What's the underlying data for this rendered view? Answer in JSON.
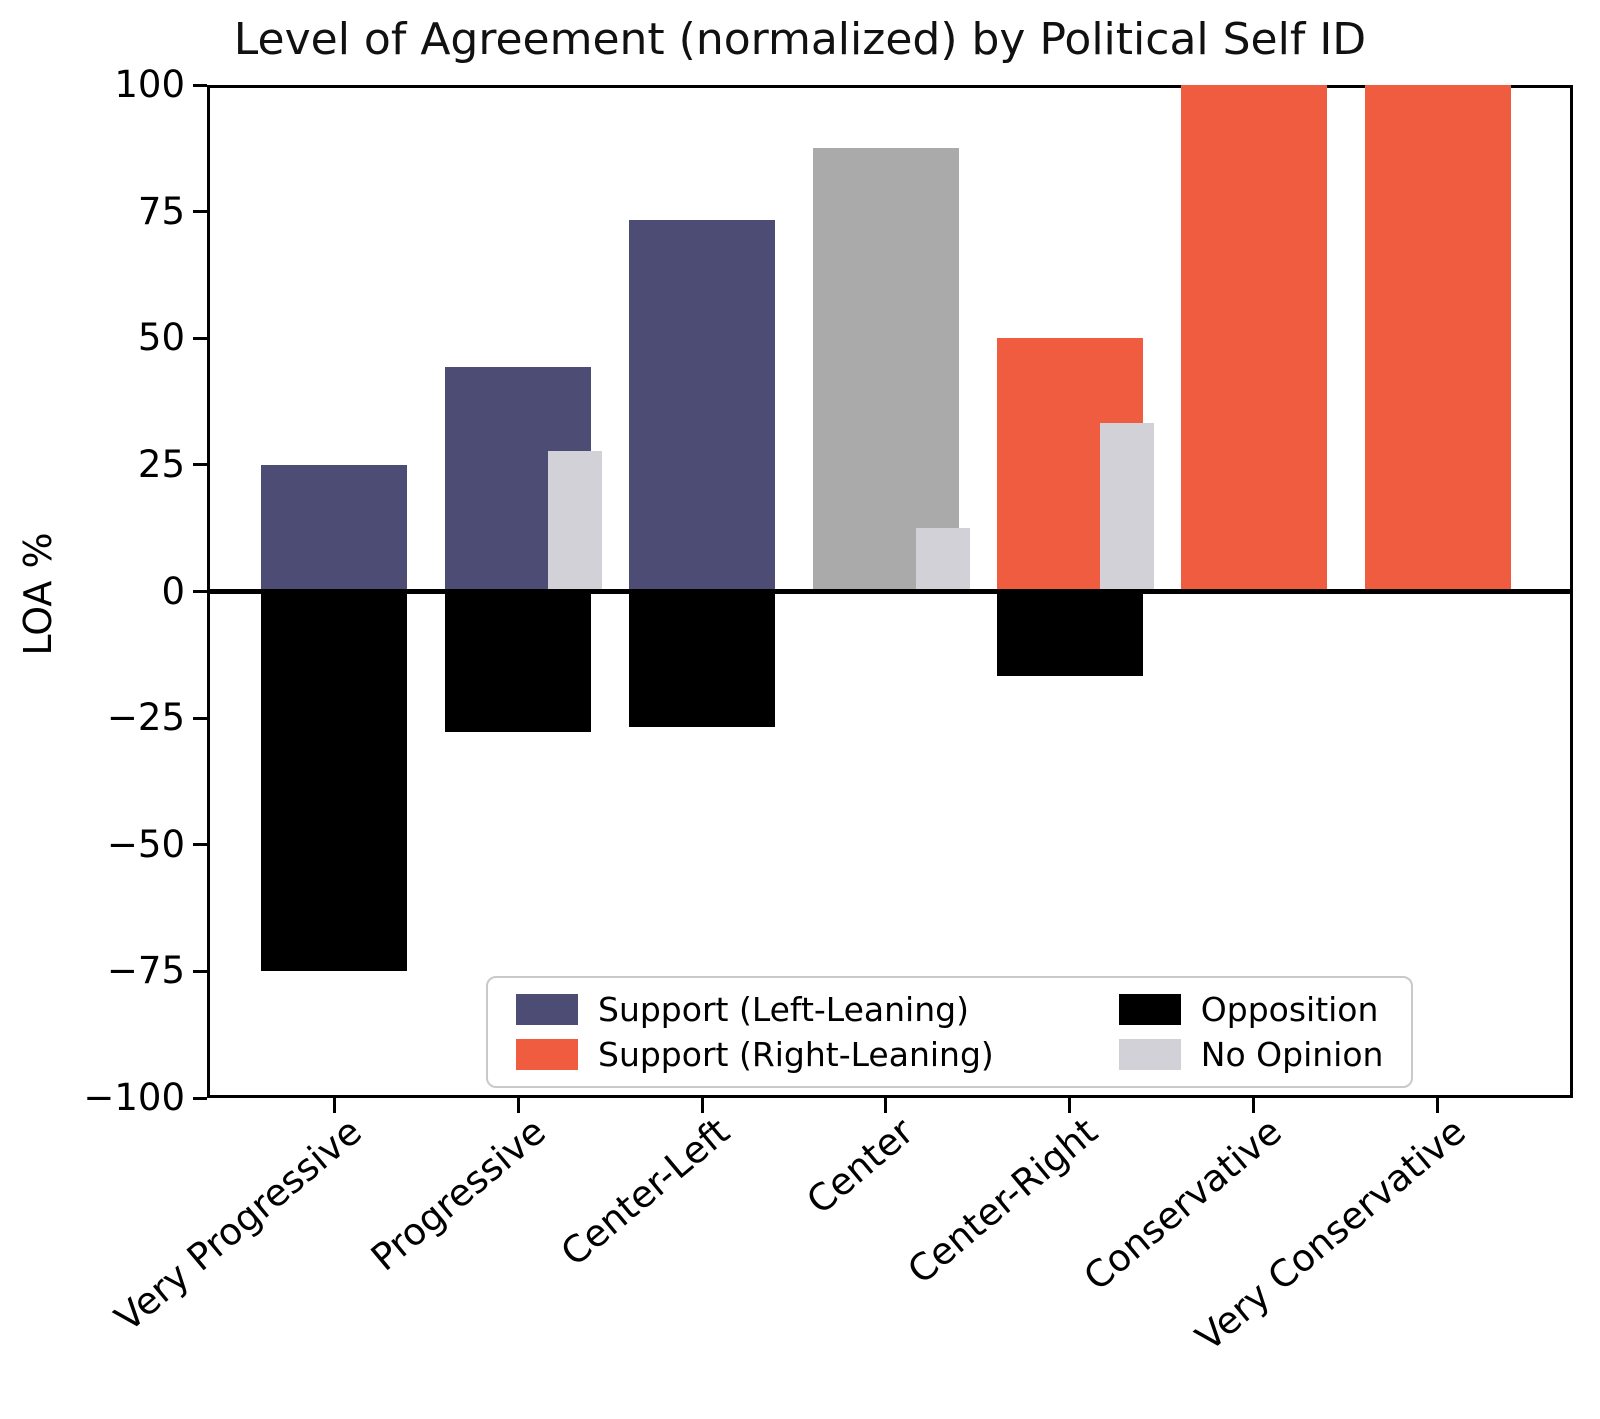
{
  "title": "Level of Agreement (normalized) by Political Self ID",
  "ylabel": "LOA %",
  "colors": {
    "support_left": "#4d4c75",
    "support_right": "#ef5c40",
    "support_center": "#aaaaaa",
    "opposition": "#000000",
    "no_opinion": "#d2d1d7",
    "axis": "#000000",
    "legend_border": "#c9c9c9"
  },
  "legend": {
    "items": [
      {
        "label": "Support (Left-Leaning)",
        "color_key": "support_left"
      },
      {
        "label": "Opposition",
        "color_key": "opposition"
      },
      {
        "label": "Support (Right-Leaning)",
        "color_key": "support_right"
      },
      {
        "label": "No Opinion",
        "color_key": "no_opinion"
      }
    ]
  },
  "chart_data": {
    "type": "bar",
    "title": "Level of Agreement (normalized) by Political Self ID",
    "xlabel": "",
    "ylabel": "LOA %",
    "ylim": [
      -100,
      100
    ],
    "grid": false,
    "legend_position": "lower center",
    "categories": [
      "Very Progressive",
      "Progressive",
      "Center-Left",
      "Center",
      "Center-Right",
      "Conservative",
      "Very Conservative"
    ],
    "yticks": [
      100,
      75,
      50,
      25,
      0,
      -25,
      -50,
      -75,
      -100
    ],
    "ytick_labels": [
      "100",
      "75",
      "50",
      "25",
      "0",
      "−25",
      "−50",
      "−75",
      "−100"
    ],
    "series": [
      {
        "name": "Support",
        "values": [
          25,
          44.4,
          73.3,
          87.5,
          50,
          100,
          100
        ],
        "color_keys": [
          "support_left",
          "support_left",
          "support_left",
          "support_center",
          "support_right",
          "support_right",
          "support_right"
        ]
      },
      {
        "name": "Opposition",
        "values": [
          -75,
          -27.8,
          -26.7,
          0,
          -16.7,
          0,
          0
        ],
        "color_key": "opposition"
      },
      {
        "name": "No Opinion",
        "values": [
          0,
          27.8,
          0,
          12.5,
          33.3,
          0,
          0
        ],
        "color_key": "no_opinion"
      }
    ]
  }
}
